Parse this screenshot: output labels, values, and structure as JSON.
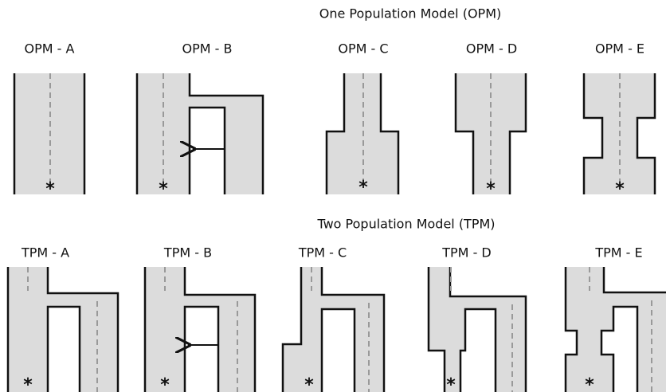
{
  "top": {
    "title": "One Population Model (OPM)",
    "panels": [
      {
        "label": "OPM - A"
      },
      {
        "label": "OPM - B"
      },
      {
        "label": "OPM - C"
      },
      {
        "label": "OPM - D"
      },
      {
        "label": "OPM - E"
      }
    ]
  },
  "bottom": {
    "title": "Two Population Model (TPM)",
    "panels": [
      {
        "label": "TPM - A"
      },
      {
        "label": "TPM - B"
      },
      {
        "label": "TPM - C"
      },
      {
        "label": "TPM - D"
      },
      {
        "label": "TPM - E"
      }
    ]
  },
  "marker": "*"
}
